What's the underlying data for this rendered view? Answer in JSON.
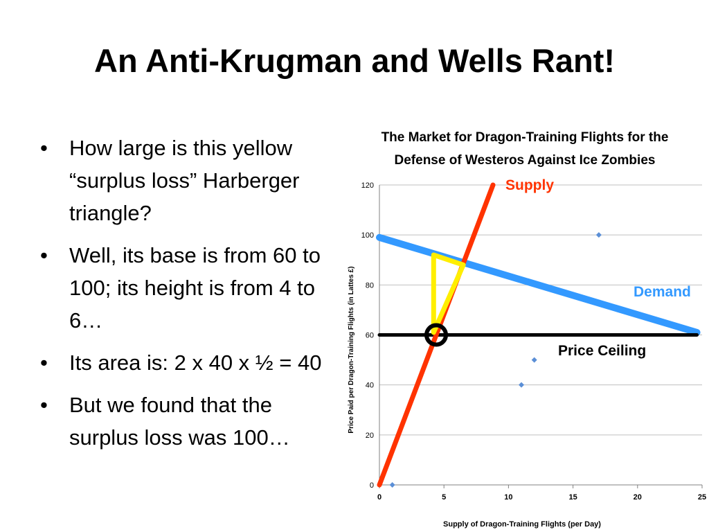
{
  "slide": {
    "title": "An Anti-Krugman and Wells Rant!",
    "bullets": [
      "How large is this yellow “surplus loss” Harberger triangle?",
      "Well, its base is from 60 to 100; its height is from 4 to 6…",
      "Its area is: 2 x 40 x ½ = 40",
      "But we found that the surplus loss was 100…"
    ]
  },
  "chart_data": {
    "type": "scatter",
    "title": "The Market for Dragon-Training Flights for the Defense of Westeros Against Ice Zombies",
    "title_lines": [
      "The Market for Dragon-Training Flights for the",
      "Defense of Westeros Against Ice Zombies"
    ],
    "xlabel": "Supply of Dragon-Training Flights (per Day)",
    "ylabel": "Price Paid per Dragon-Training Flights (in Lattes £)",
    "xlim": [
      0,
      25
    ],
    "ylim": [
      0,
      120
    ],
    "x_ticks": [
      0,
      5,
      10,
      15,
      20,
      25
    ],
    "y_ticks": [
      0,
      20,
      40,
      60,
      80,
      100,
      120
    ],
    "gridlines": "horizontal",
    "points": [
      {
        "x": 1,
        "y": 0
      },
      {
        "x": 11,
        "y": 40
      },
      {
        "x": 12,
        "y": 50
      },
      {
        "x": 17,
        "y": 100
      }
    ],
    "lines": [
      {
        "label": "Supply",
        "from": [
          0,
          0
        ],
        "to": [
          8.8,
          120
        ],
        "color": "#ff3300"
      },
      {
        "label": "Demand",
        "from": [
          0,
          99
        ],
        "to": [
          24.6,
          61
        ],
        "color": "#3399ff"
      },
      {
        "label": "Price Ceiling",
        "from": [
          0,
          60
        ],
        "to": [
          24.6,
          60
        ],
        "color": "#000000"
      }
    ],
    "triangle": {
      "vertices": [
        [
          4.2,
          61
        ],
        [
          4.2,
          92
        ],
        [
          6.5,
          88
        ]
      ],
      "color": "#ffee00"
    },
    "marker": {
      "x": 4.4,
      "y": 60,
      "shape": "circle"
    },
    "point_color": "#5b8fd6"
  }
}
